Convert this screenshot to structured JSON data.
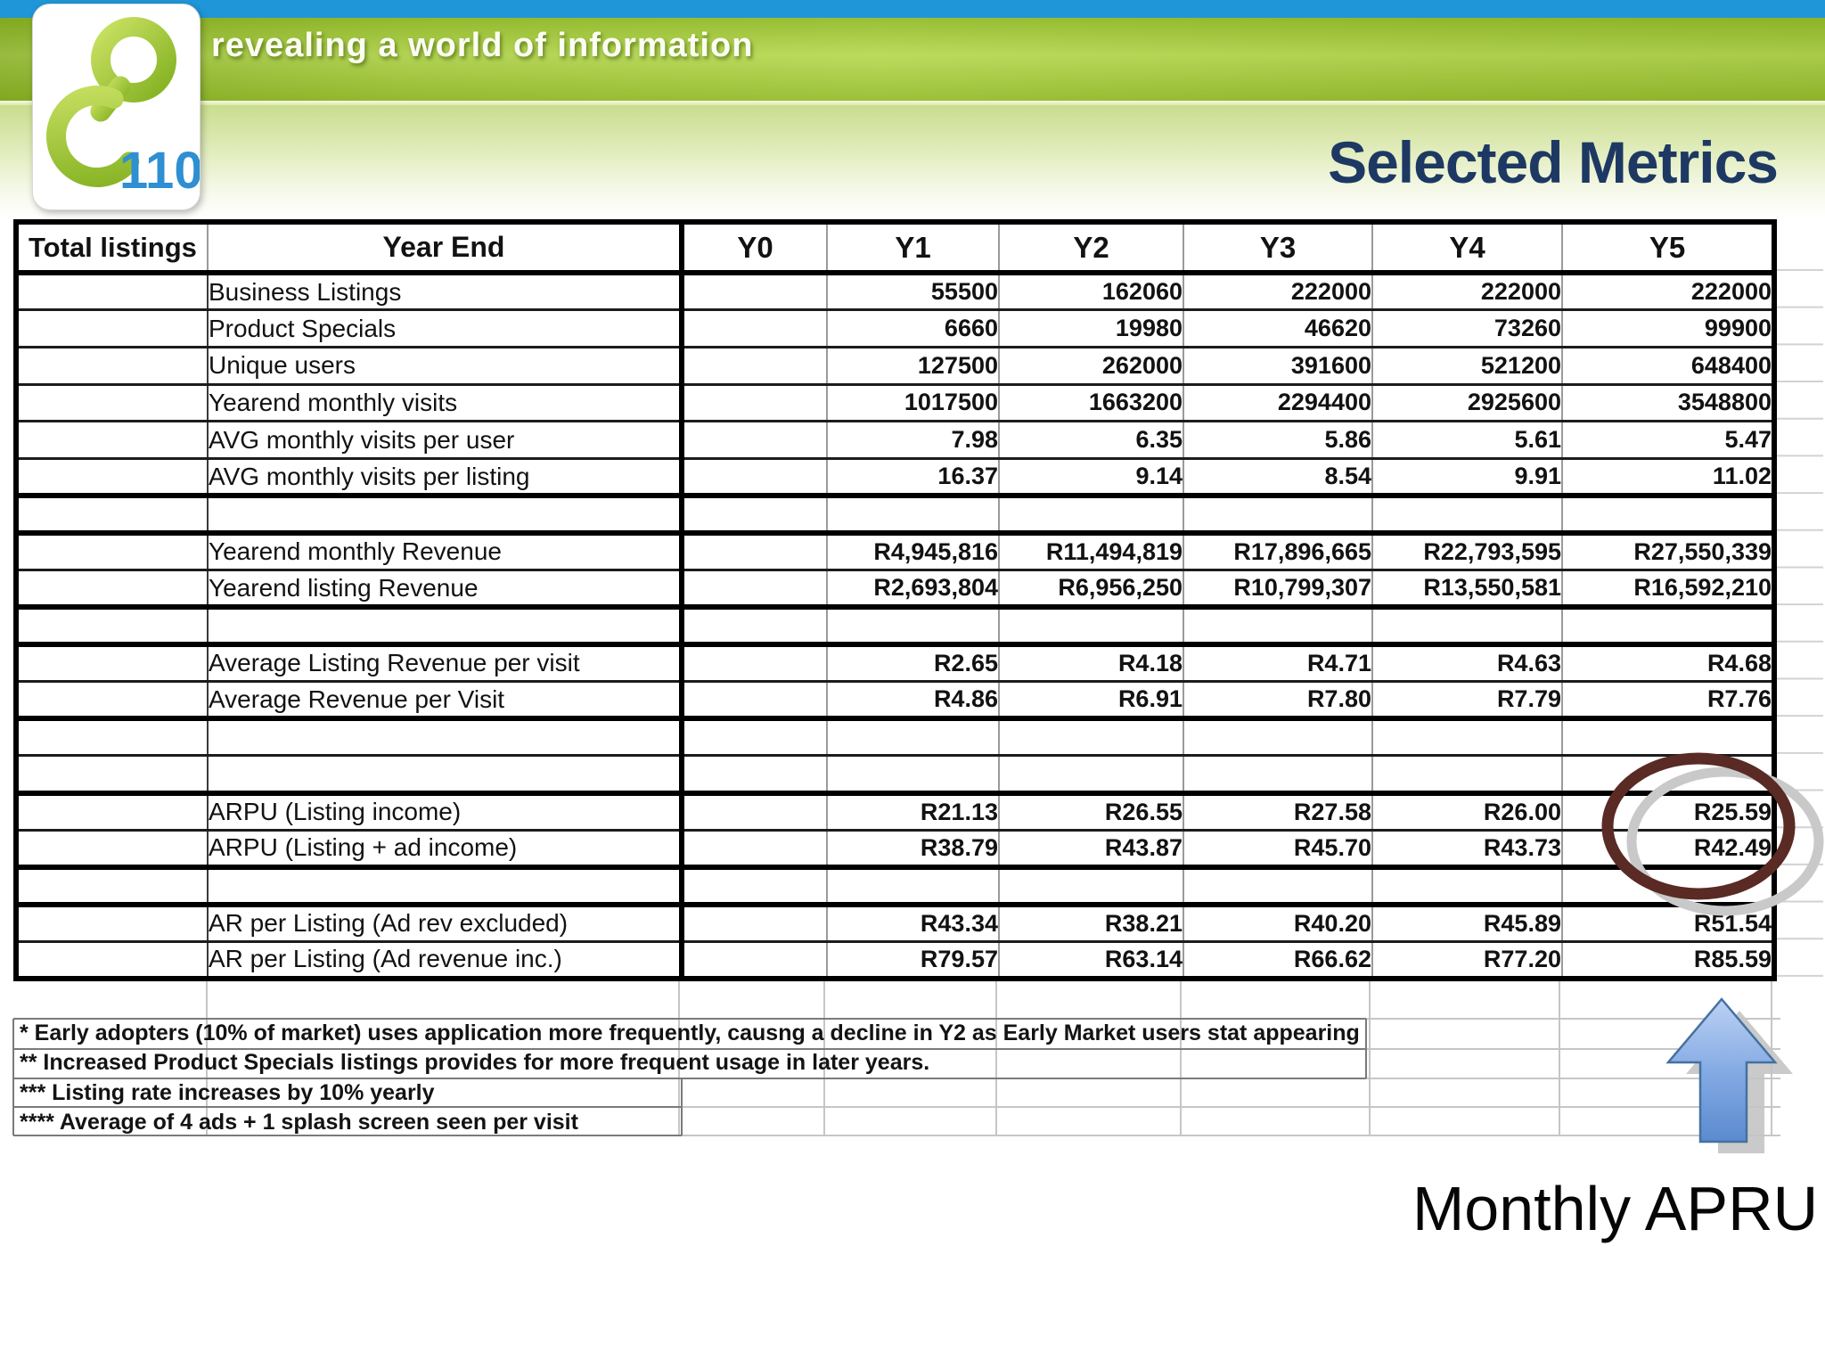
{
  "slide": {
    "tagline": "revealing a world of information",
    "logo_text": "110",
    "title": "Selected Metrics",
    "callout_label": "Monthly APRU"
  },
  "table": {
    "corner_header": "Total listings",
    "row_header": "Year End",
    "year_columns": [
      "Y0",
      "Y1",
      "Y2",
      "Y3",
      "Y4",
      "Y5"
    ],
    "rows": [
      {
        "label": "Business Listings",
        "values": [
          "",
          "55500",
          "162060",
          "222000",
          "222000",
          "222000"
        ]
      },
      {
        "label": "Product Specials",
        "values": [
          "",
          "6660",
          "19980",
          "46620",
          "73260",
          "99900"
        ]
      },
      {
        "label": "Unique users",
        "values": [
          "",
          "127500",
          "262000",
          "391600",
          "521200",
          "648400"
        ]
      },
      {
        "label": "Yearend monthly visits",
        "values": [
          "",
          "1017500",
          "1663200",
          "2294400",
          "2925600",
          "3548800"
        ]
      },
      {
        "label": "AVG monthly visits per user",
        "values": [
          "",
          "7.98",
          "6.35",
          "5.86",
          "5.61",
          "5.47"
        ]
      },
      {
        "label": "AVG monthly visits per listing",
        "values": [
          "",
          "16.37",
          "9.14",
          "8.54",
          "9.91",
          "11.02"
        ]
      },
      {
        "empty": true,
        "thick_top": true,
        "label": "",
        "values": [
          "",
          "",
          "",
          "",
          "",
          ""
        ]
      },
      {
        "thick_top": true,
        "label": "Yearend monthly Revenue",
        "values": [
          "",
          "R4,945,816",
          "R11,494,819",
          "R17,896,665",
          "R22,793,595",
          "R27,550,339"
        ]
      },
      {
        "label": "Yearend listing Revenue",
        "values": [
          "",
          "R2,693,804",
          "R6,956,250",
          "R10,799,307",
          "R13,550,581",
          "R16,592,210"
        ]
      },
      {
        "empty": true,
        "thick_top": true,
        "label": "",
        "values": [
          "",
          "",
          "",
          "",
          "",
          ""
        ]
      },
      {
        "thick_top": true,
        "label": "Average Listing Revenue per visit",
        "values": [
          "",
          "R2.65",
          "R4.18",
          "R4.71",
          "R4.63",
          "R4.68"
        ]
      },
      {
        "label": "Average Revenue per Visit",
        "values": [
          "",
          "R4.86",
          "R6.91",
          "R7.80",
          "R7.79",
          "R7.76"
        ]
      },
      {
        "empty": true,
        "thick_top": true,
        "label": "",
        "values": [
          "",
          "",
          "",
          "",
          "",
          ""
        ]
      },
      {
        "empty": true,
        "label": "",
        "values": [
          "",
          "",
          "",
          "",
          "",
          ""
        ]
      },
      {
        "thick_top": true,
        "label": "ARPU (Listing income)",
        "values": [
          "",
          "R21.13",
          "R26.55",
          "R27.58",
          "R26.00",
          "R25.59"
        ]
      },
      {
        "label": "ARPU (Listing + ad income)",
        "values": [
          "",
          "R38.79",
          "R43.87",
          "R45.70",
          "R43.73",
          "R42.49"
        ]
      },
      {
        "empty": true,
        "thick_top": true,
        "label": "",
        "values": [
          "",
          "",
          "",
          "",
          "",
          ""
        ]
      },
      {
        "thick_top": true,
        "label": "AR per Listing (Ad rev excluded)",
        "values": [
          "",
          "R43.34",
          "R38.21",
          "R40.20",
          "R45.89",
          "R51.54"
        ]
      },
      {
        "label": "AR per Listing (Ad revenue inc.)",
        "values": [
          "",
          "R79.57",
          "R63.14",
          "R66.62",
          "R77.20",
          "R85.59"
        ]
      }
    ]
  },
  "annotations": {
    "highlighted_cells": [
      "R25.59",
      "R42.49"
    ],
    "arrow_points_to": "Y5 ARPU values"
  },
  "footnotes": [
    "* Early adopters (10% of market) uses application more frequently, causng a decline in Y2 as Early Market users stat appearing",
    "** Increased Product Specials listings provides for more frequent usage in later years.",
    "*** Listing rate increases by 10% yearly",
    "**** Average of 4 ads +  1 splash screen seen per visit"
  ],
  "colors": {
    "top_bar_blue": "#1e96d8",
    "banner_green": "#a7ca3e",
    "title_navy": "#1d3963",
    "logo_green": "#9cc42e",
    "logo_blue": "#2e8fd2",
    "highlight_ellipse": "#5a2a24",
    "arrow_blue": "#7da7e3",
    "table_text": "#121212"
  }
}
